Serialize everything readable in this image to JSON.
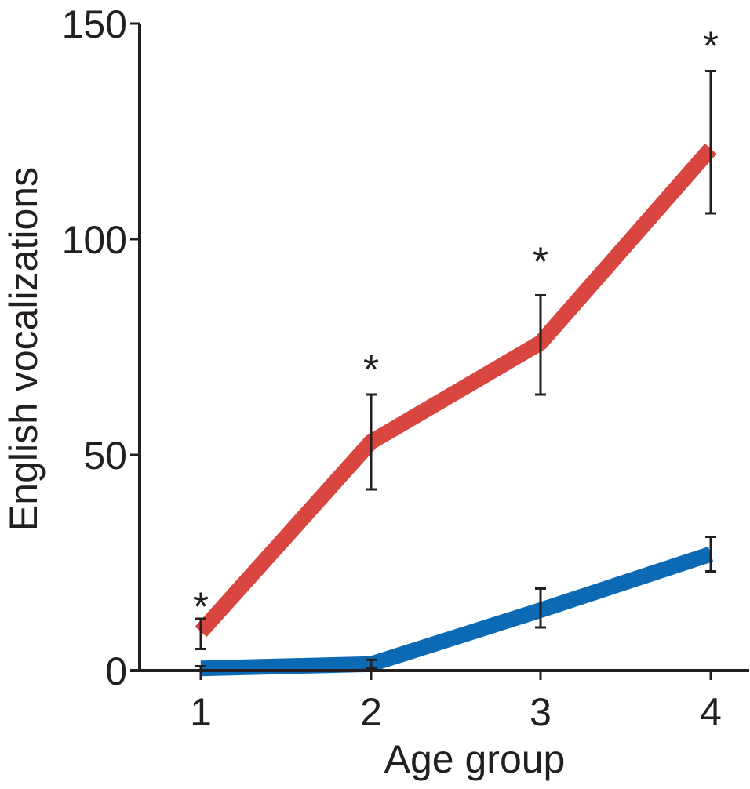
{
  "chart_data": {
    "type": "line",
    "xlabel": "Age group",
    "ylabel": "English vocalizations",
    "x": [
      1,
      2,
      3,
      4
    ],
    "x_tick_labels": [
      "1",
      "2",
      "3",
      "4"
    ],
    "ylim": [
      0,
      150
    ],
    "y_ticks": [
      0,
      50,
      100,
      150
    ],
    "y_tick_labels": [
      "0",
      "50",
      "100",
      "150"
    ],
    "grid": false,
    "legend": "none",
    "series": [
      {
        "color": "#d9463f",
        "values": [
          9,
          53,
          76,
          121
        ],
        "error_low": [
          5,
          42,
          64,
          106
        ],
        "error_high": [
          12,
          64,
          87,
          139
        ]
      },
      {
        "color": "#0c6ab5",
        "values": [
          0.5,
          1.5,
          14,
          27
        ],
        "error_low": [
          0,
          0.5,
          10,
          23
        ],
        "error_high": [
          1,
          2.5,
          19,
          31
        ]
      }
    ],
    "annotations": [
      {
        "x": 1,
        "text": "*",
        "y": 17
      },
      {
        "x": 2,
        "text": "*",
        "y": 72
      },
      {
        "x": 3,
        "text": "*",
        "y": 97
      },
      {
        "x": 4,
        "text": "*",
        "y": 147
      }
    ]
  }
}
